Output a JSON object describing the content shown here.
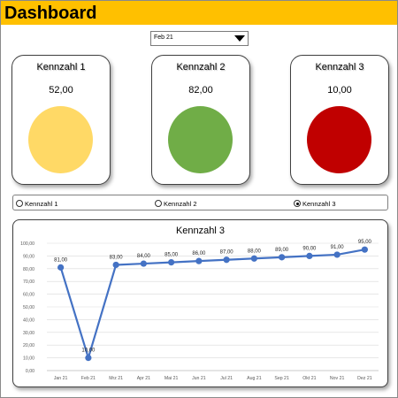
{
  "header": {
    "title": "Dashboard",
    "color": "#ffc000"
  },
  "month_select": {
    "value": "Feb 21"
  },
  "kpis": [
    {
      "label": "Kennzahl  1",
      "value": "52,00",
      "color": "#ffd966"
    },
    {
      "label": "Kennzahl  2",
      "value": "82,00",
      "color": "#70ad47"
    },
    {
      "label": "Kennzahl  3",
      "value": "10,00",
      "color": "#c00000"
    }
  ],
  "radio_options": [
    {
      "label": "Kennzahl 1",
      "checked": false
    },
    {
      "label": "Kennzahl 2",
      "checked": false
    },
    {
      "label": "Kennzahl 3",
      "checked": true
    }
  ],
  "chart_data": {
    "type": "line",
    "title": "Kennzahl  3",
    "categories": [
      "Jan 21",
      "Feb 21",
      "Mrz 21",
      "Apr 21",
      "Mai 21",
      "Jun 21",
      "Jul 21",
      "Aug 21",
      "Sep 21",
      "Okt 21",
      "Nov 21",
      "Dez 21"
    ],
    "values": [
      81,
      10,
      83,
      84,
      85,
      86,
      87,
      88,
      89,
      90,
      91,
      95
    ],
    "data_labels": [
      "81,00",
      "10,00",
      "83,00",
      "84,00",
      "85,00",
      "86,00",
      "87,00",
      "88,00",
      "89,00",
      "90,00",
      "91,00",
      "95,00"
    ],
    "y_ticks": [
      "0,00",
      "10,00",
      "20,00",
      "30,00",
      "40,00",
      "50,00",
      "60,00",
      "70,00",
      "80,00",
      "90,00",
      "100,00"
    ],
    "ylim": [
      0,
      100
    ],
    "grid": true,
    "line_color": "#4472c4"
  }
}
